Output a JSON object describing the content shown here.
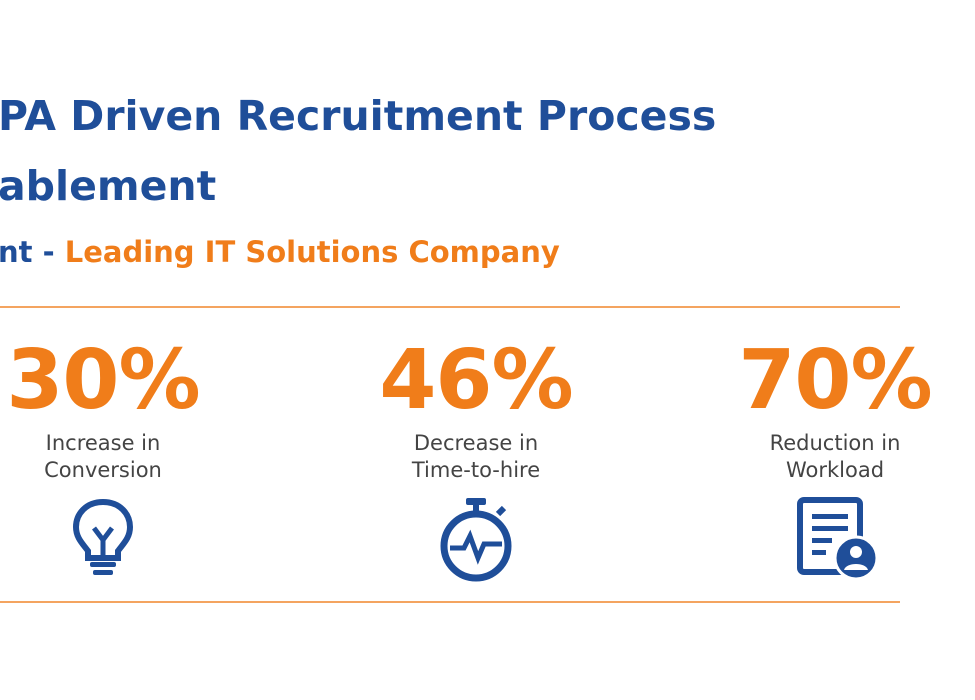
{
  "header": {
    "title_lines": [
      "PA Driven Recruitment Process",
      "ablement"
    ],
    "client_prefix": "nt - ",
    "client_name": "Leading IT Solutions Company"
  },
  "stats": [
    {
      "value": "30%",
      "label_lines": [
        "Increase in",
        "Conversion"
      ]
    },
    {
      "value": "46%",
      "label_lines": [
        "Decrease in",
        "Time-to-hire"
      ]
    },
    {
      "value": "70%",
      "label_lines": [
        "Reduction in",
        "Workload"
      ]
    }
  ]
}
